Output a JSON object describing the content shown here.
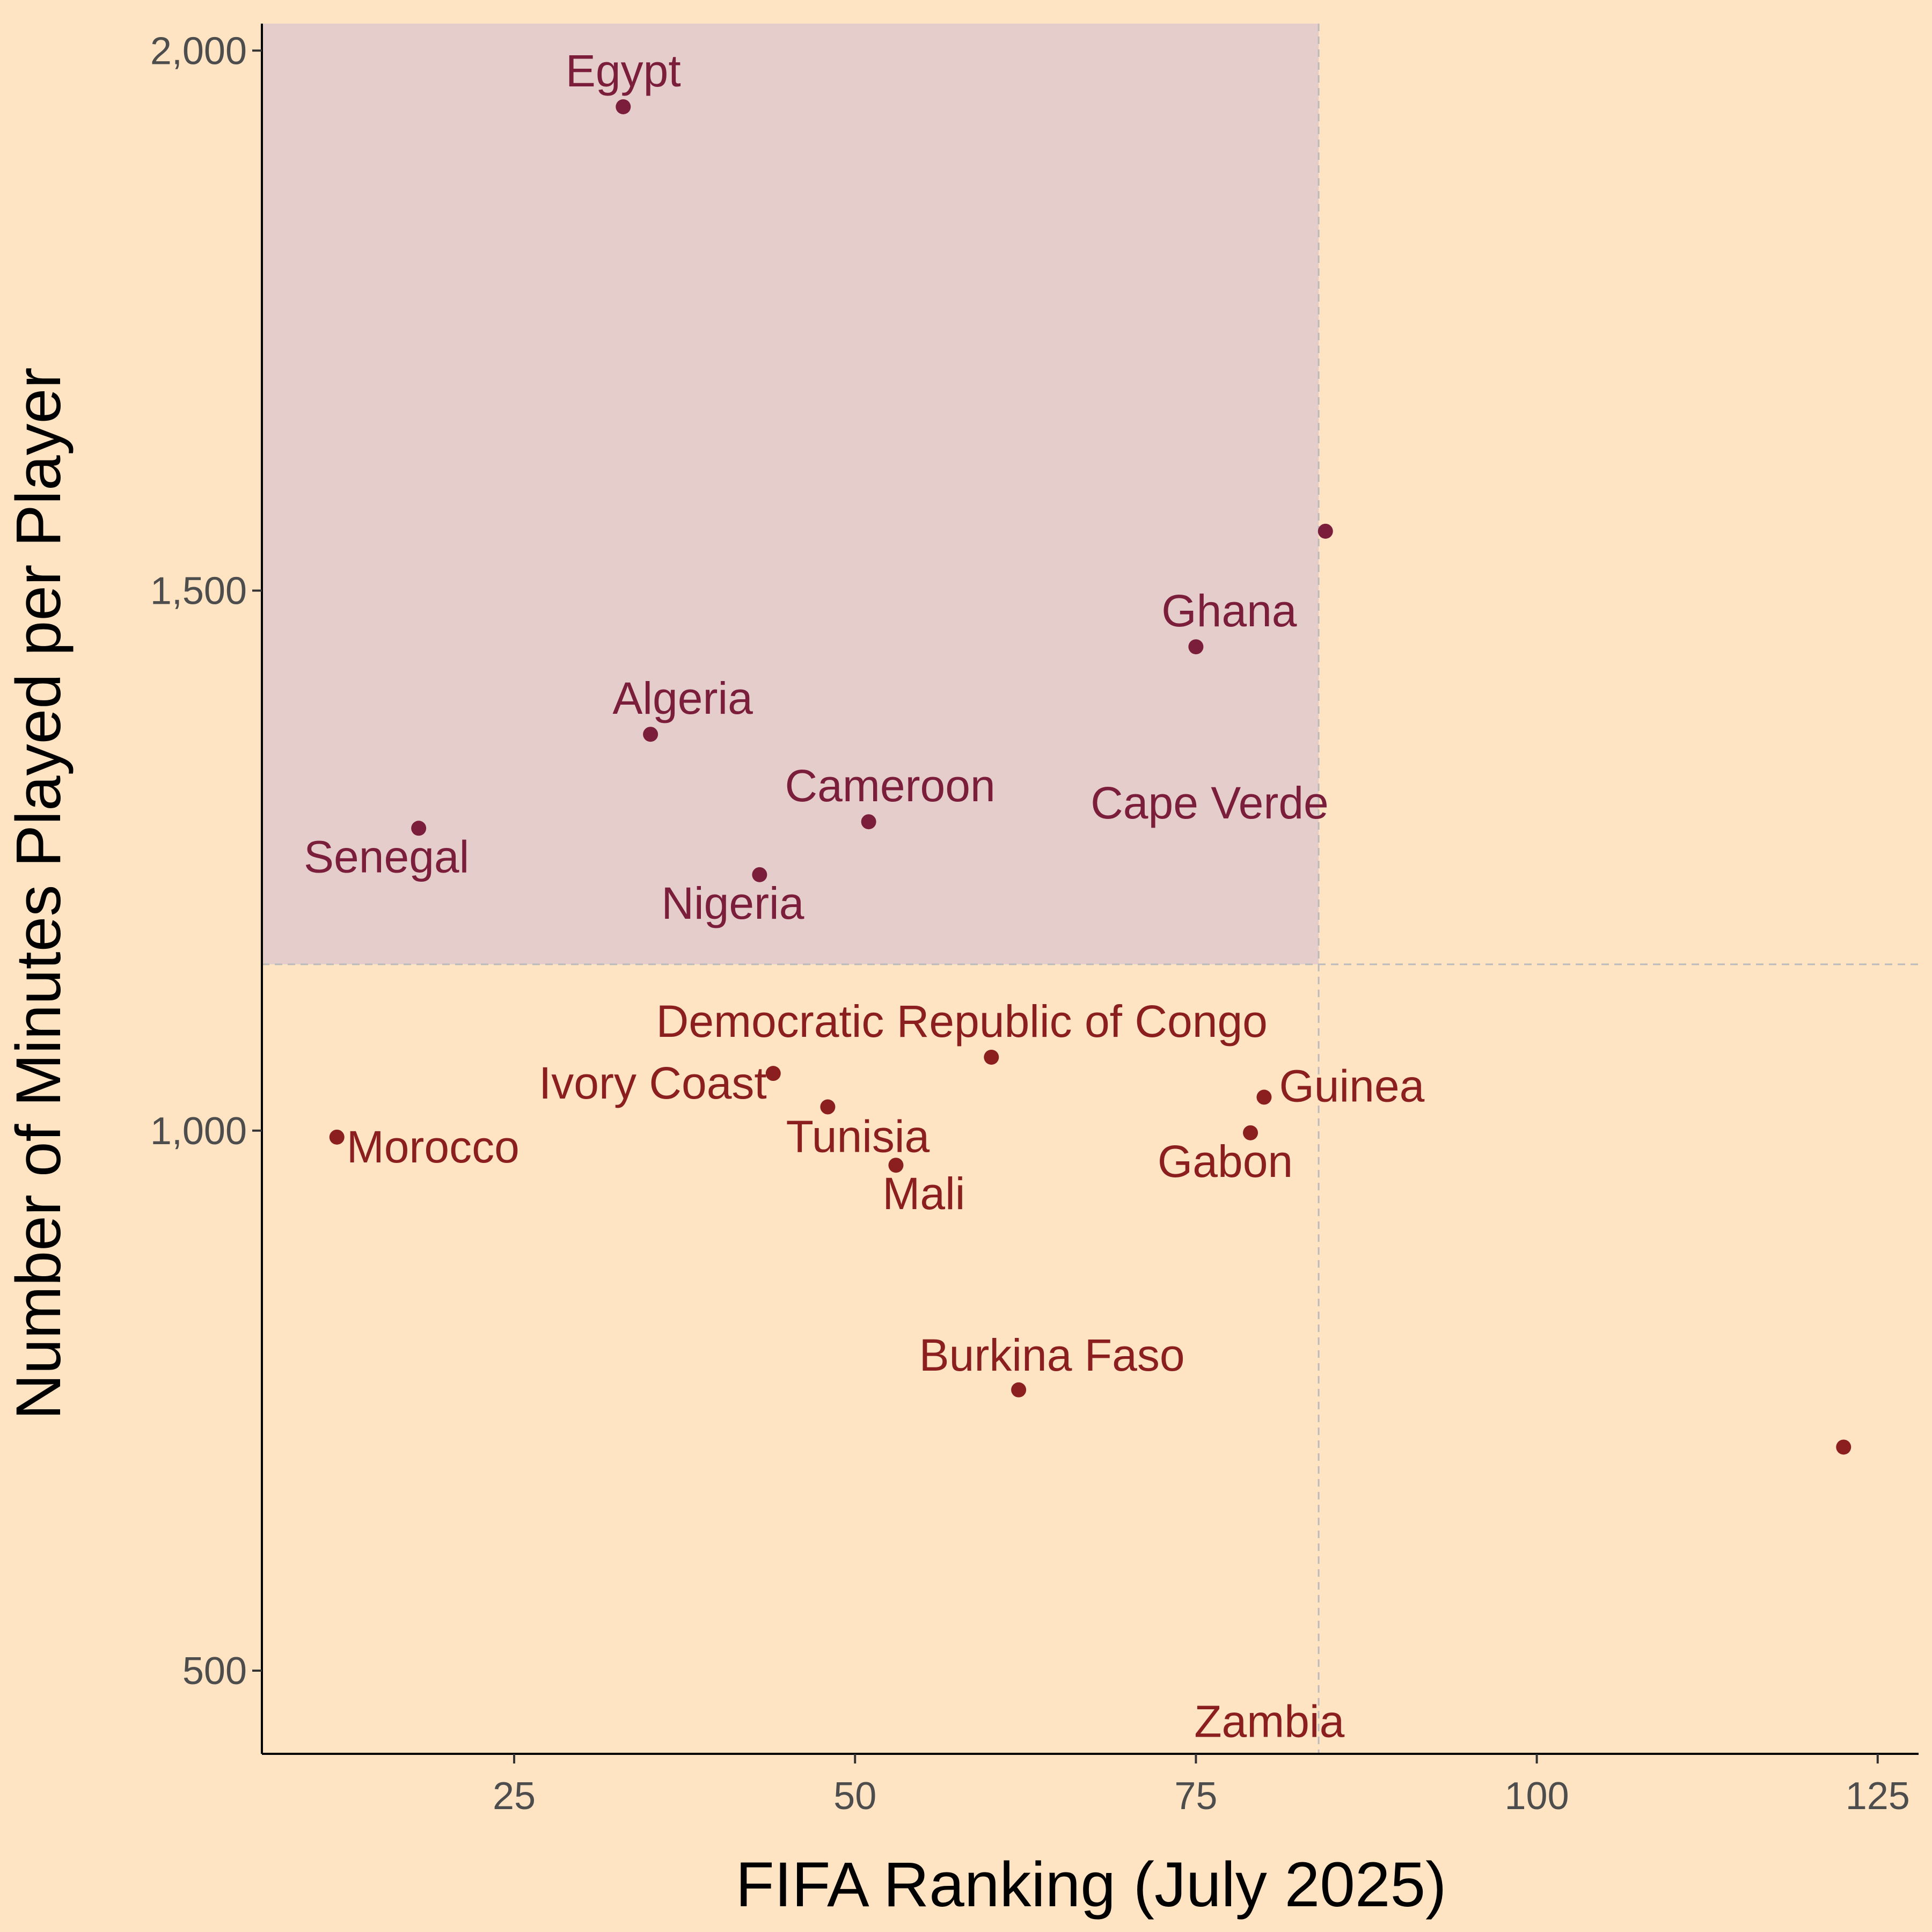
{
  "chart_data": {
    "type": "scatter",
    "title": "",
    "xlabel": "FIFA Ranking (July 2025)",
    "ylabel": "Number of Minutes Played per Player",
    "xlim": [
      6.5,
      128
    ],
    "ylim": [
      423,
      2025
    ],
    "x_ticks": [
      25,
      50,
      75,
      100,
      125
    ],
    "x_tick_labels": [
      "25",
      "50",
      "75",
      "100",
      "125"
    ],
    "y_ticks": [
      500,
      1000,
      1500,
      2000
    ],
    "y_tick_labels": [
      "500",
      "1,000",
      "1,500",
      "2,000"
    ],
    "reference_lines": {
      "x": 84,
      "y": 1154
    },
    "highlight_region": {
      "x": [
        6.5,
        84
      ],
      "y": [
        1154,
        2025
      ],
      "color": "#E4CDCA"
    },
    "grid": false,
    "legend": "none",
    "colors": {
      "background": "#FFE4C4",
      "highlight_points": "#7B1E3C",
      "other_points": "#8B1E1E",
      "axis": "#000000",
      "tick_text": "#4D4D4D",
      "reference_line": "#BBBBBB"
    },
    "points": [
      {
        "label": "Egypt",
        "x": 33,
        "y": 1948,
        "group": "highlight",
        "anchor": "middle",
        "dx": 0,
        "dy": -38
      },
      {
        "label": "Algeria",
        "x": 35,
        "y": 1367,
        "group": "highlight",
        "anchor": "middle",
        "dx": 60,
        "dy": -38
      },
      {
        "label": "Senegal",
        "x": 18,
        "y": 1280,
        "group": "highlight",
        "anchor": "middle",
        "dx": -60,
        "dy": 82
      },
      {
        "label": "Cameroon",
        "x": 51,
        "y": 1286,
        "group": "highlight",
        "anchor": "middle",
        "dx": 40,
        "dy": -38
      },
      {
        "label": "Nigeria",
        "x": 43,
        "y": 1237,
        "group": "highlight",
        "anchor": "middle",
        "dx": -50,
        "dy": 82
      },
      {
        "label": "Ghana",
        "x": 75,
        "y": 1448,
        "group": "highlight",
        "anchor": "middle",
        "dx": 62,
        "dy": -38
      },
      {
        "label": "Cape Verde",
        "x": 84.5,
        "y": 1555,
        "group": "highlight",
        "anchor": "end",
        "dx": 6,
        "dy": 535
      },
      {
        "label": "Morocco",
        "x": 12,
        "y": 994,
        "group": "other",
        "anchor": "start",
        "dx": 18,
        "dy": 47
      },
      {
        "label": "Ivory Coast",
        "x": 44,
        "y": 1053,
        "group": "other",
        "anchor": "end",
        "dx": -12,
        "dy": 47
      },
      {
        "label": "Tunisia",
        "x": 48,
        "y": 1022,
        "group": "other",
        "anchor": "middle",
        "dx": 56,
        "dy": 84
      },
      {
        "label": "Mali",
        "x": 53,
        "y": 968,
        "group": "other",
        "anchor": "middle",
        "dx": 52,
        "dy": 82
      },
      {
        "label": "Democratic Republic of Congo",
        "x": 60,
        "y": 1068,
        "group": "other",
        "anchor": "middle",
        "dx": -55,
        "dy": -38
      },
      {
        "label": "Guinea",
        "x": 80,
        "y": 1031,
        "group": "other",
        "anchor": "start",
        "dx": 28,
        "dy": 8
      },
      {
        "label": "Gabon",
        "x": 79,
        "y": 998,
        "group": "other",
        "anchor": "middle",
        "dx": -47,
        "dy": 82
      },
      {
        "label": "Burkina Faso",
        "x": 62,
        "y": 760,
        "group": "other",
        "anchor": "middle",
        "dx": 62,
        "dy": -36
      },
      {
        "label": "Zambia",
        "x": 122.5,
        "y": 707,
        "group": "other",
        "anchor": "middle",
        "dx": -1070,
        "dy": 540
      }
    ]
  }
}
